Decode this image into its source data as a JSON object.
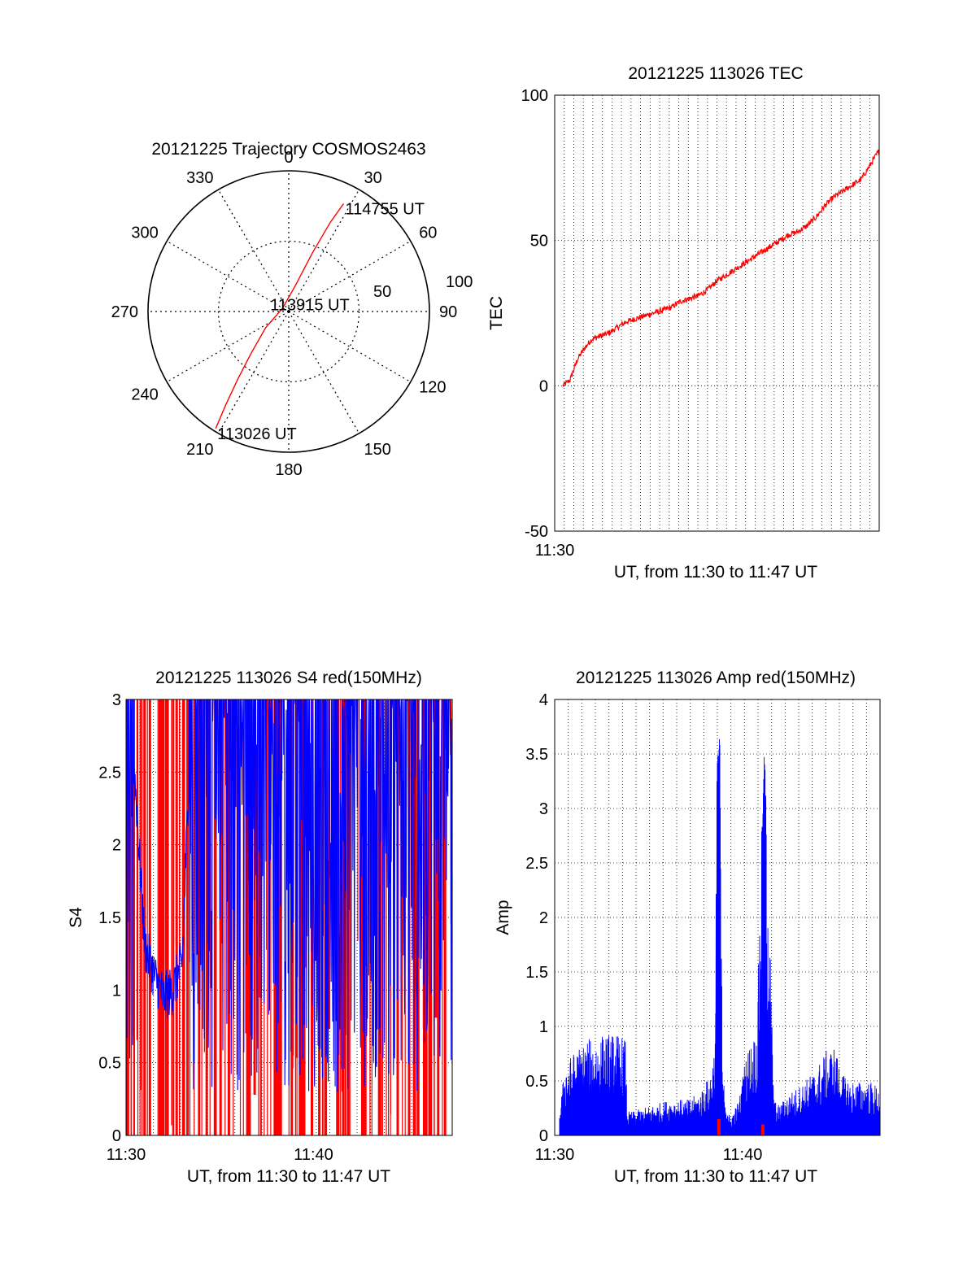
{
  "polar": {
    "title": "20121225 Trajectory COSMOS2463",
    "azimuth_labels": [
      "0",
      "30",
      "60",
      "90",
      "120",
      "150",
      "180",
      "210",
      "240",
      "270",
      "300",
      "330"
    ],
    "radial_labels": [
      "50",
      "100"
    ],
    "point_labels": {
      "start": "113026 UT",
      "middle": "113915 UT",
      "end": "114755 UT"
    },
    "colors": {
      "track": "#ff0000"
    }
  },
  "tec": {
    "title": "20121225 113026 TEC",
    "ylabel": "TEC",
    "xlabel": "UT, from 11:30 to 11:47 UT",
    "y_ticks": [
      "100",
      "50",
      "0",
      "-50"
    ],
    "x_ticks": [
      "11:30"
    ],
    "colors": {
      "line": "#ff0000"
    }
  },
  "s4": {
    "title": "20121225 113026 S4 red(150MHz)",
    "ylabel": "S4",
    "xlabel": "UT, from 11:30 to 11:47 UT",
    "y_ticks": [
      "0",
      "0.5",
      "1",
      "1.5",
      "2",
      "2.5",
      "3"
    ],
    "x_ticks": [
      "11:30",
      "11:40"
    ],
    "colors": {
      "red": "#ff0000",
      "blue": "#0000ff"
    }
  },
  "amp": {
    "title": "20121225 113026 Amp red(150MHz)",
    "ylabel": "Amp",
    "xlabel": "UT, from 11:30 to 11:47 UT",
    "y_ticks": [
      "0",
      "0.5",
      "1",
      "1.5",
      "2",
      "2.5",
      "3",
      "3.5",
      "4"
    ],
    "x_ticks": [
      "11:30",
      "11:40"
    ],
    "colors": {
      "red": "#ff0000",
      "blue": "#0000ff"
    }
  },
  "chart_data": [
    {
      "type": "scatter",
      "subtype": "polar-trajectory",
      "title": "20121225 Trajectory COSMOS2463",
      "r_range": [
        0,
        100
      ],
      "track": [
        {
          "az": 212,
          "r": 98,
          "label": "113026 UT"
        },
        {
          "az": 214,
          "r": 80
        },
        {
          "az": 217,
          "r": 60
        },
        {
          "az": 222,
          "r": 40
        },
        {
          "az": 235,
          "r": 20
        },
        {
          "az": 295,
          "r": 5,
          "label": "113915 UT"
        },
        {
          "az": 15,
          "r": 20
        },
        {
          "az": 22,
          "r": 45
        },
        {
          "az": 25,
          "r": 70
        },
        {
          "az": 27,
          "r": 86,
          "label": "114755 UT"
        }
      ]
    },
    {
      "type": "line",
      "title": "20121225 113026 TEC",
      "xlabel": "UT, from 11:30 to 11:47 UT",
      "ylabel": "TEC",
      "x_unit": "minutes after 11:30 UT",
      "xlim": [
        0,
        17.5
      ],
      "ylim": [
        -50,
        100
      ],
      "grid": true,
      "series": [
        {
          "x": [
            0,
            0.4,
            0.8,
            1.2,
            1.6,
            2,
            2.5,
            3,
            3.5,
            4,
            4.5,
            5,
            5.5,
            6,
            6.5,
            7,
            7.5,
            8,
            8.5,
            9,
            9.5,
            10,
            10.5,
            11,
            11.5,
            12,
            12.5,
            13,
            13.5,
            14,
            14.5,
            15,
            15.5,
            16,
            16.5,
            17,
            17.5
          ],
          "y": [
            0,
            2,
            9,
            13,
            16,
            17,
            18,
            20,
            22,
            23,
            24,
            25,
            26,
            27,
            29,
            30,
            31,
            33,
            36,
            38,
            40,
            42,
            44,
            46,
            48,
            50,
            52,
            53,
            55,
            58,
            62,
            65,
            67,
            69,
            71,
            76,
            81
          ]
        }
      ]
    },
    {
      "type": "line",
      "title": "20121225 113026 S4 red(150MHz)",
      "xlabel": "UT, from 11:30 to 11:47 UT",
      "ylabel": "S4",
      "x_unit": "minutes after 11:30 UT",
      "xlim": [
        0,
        17.4
      ],
      "ylim": [
        0,
        3
      ],
      "grid": true,
      "series": [
        {
          "name": "red",
          "color": "#ff0000",
          "density": "high",
          "note": "dense vertical red spikes between 0 and 3",
          "x": [
            0.5,
            1.2,
            2,
            2.5,
            3,
            3.6,
            4.2,
            5,
            6,
            7,
            8,
            9,
            10,
            11,
            12,
            13,
            14,
            15,
            16,
            17
          ],
          "y": [
            3,
            3,
            3,
            3,
            3,
            3,
            3,
            3,
            3,
            3,
            3,
            3,
            3,
            3,
            3,
            3,
            3,
            3,
            3,
            3
          ]
        },
        {
          "name": "blue",
          "color": "#0000ff",
          "x": [
            0,
            0.5,
            1,
            1.5,
            2,
            2.5,
            3,
            3.5,
            4,
            5,
            6,
            7,
            8,
            9,
            10,
            11,
            12,
            13,
            14,
            15,
            16,
            17
          ],
          "y": [
            3,
            2.4,
            1.3,
            1.1,
            0.95,
            1.0,
            1.2,
            3,
            3,
            3,
            3,
            3,
            3,
            3,
            3,
            3,
            3,
            3,
            3,
            3,
            3,
            3
          ]
        }
      ]
    },
    {
      "type": "area",
      "title": "20121225 113026 Amp red(150MHz)",
      "xlabel": "UT, from 11:30 to 11:47 UT",
      "ylabel": "Amp",
      "x_unit": "minutes after 11:30 UT",
      "xlim": [
        0,
        17.5
      ],
      "ylim": [
        0,
        4
      ],
      "grid": true,
      "series": [
        {
          "name": "blue",
          "color": "#0000ff",
          "x": [
            0,
            0.3,
            0.8,
            1.5,
            2.5,
            3.2,
            3.6,
            3.7,
            4,
            5,
            6,
            7,
            7.6,
            8.2,
            8.5,
            8.6,
            8.75,
            8.9,
            9.3,
            9.8,
            10.2,
            10.8,
            11,
            11.2,
            11.7,
            12,
            12.5,
            13,
            14,
            14.5,
            15,
            15.5,
            16,
            17,
            17.5
          ],
          "y": [
            0.2,
            0.6,
            0.7,
            0.8,
            0.85,
            0.85,
            0.8,
            0.2,
            0.2,
            0.25,
            0.3,
            0.3,
            0.35,
            0.5,
            0.8,
            3.6,
            3.65,
            0.5,
            0.15,
            0.3,
            0.7,
            0.9,
            2.7,
            3.6,
            0.3,
            0.25,
            0.35,
            0.4,
            0.55,
            0.7,
            0.75,
            0.5,
            0.45,
            0.45,
            0.4
          ]
        },
        {
          "name": "red",
          "color": "#ff0000",
          "x": [
            8.7,
            11.1
          ],
          "y": [
            0.15,
            0.1
          ]
        }
      ]
    }
  ]
}
